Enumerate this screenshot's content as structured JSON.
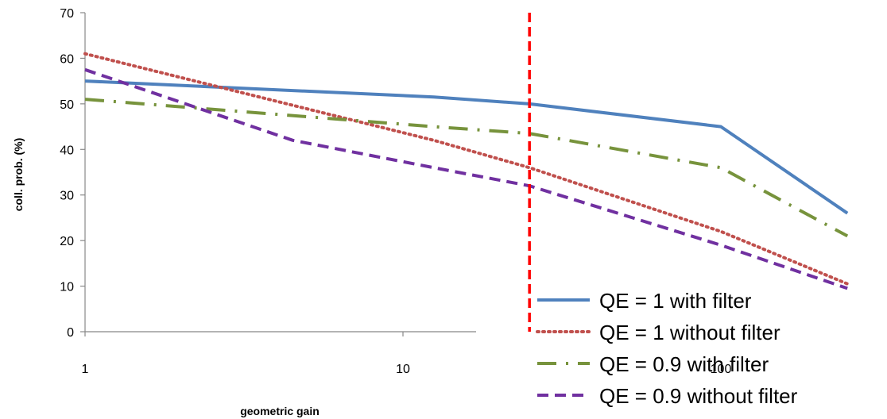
{
  "chart_data": {
    "type": "line",
    "title": "",
    "xlabel": "geometric gain",
    "ylabel": "coll. prob. (%)",
    "x_scale": "log",
    "xlim": [
      1,
      250
    ],
    "ylim": [
      0,
      70
    ],
    "x_ticks": [
      1,
      10,
      100
    ],
    "y_ticks": [
      0,
      10,
      20,
      30,
      40,
      50,
      60,
      70
    ],
    "grid": false,
    "legend_position": "bottom-right",
    "series": [
      {
        "name": "QE = 1 with filter",
        "color": "#4F81BD",
        "style": "solid",
        "x": [
          1,
          12.5,
          25,
          100,
          250
        ],
        "y": [
          55,
          51.5,
          50,
          45,
          26
        ]
      },
      {
        "name": "QE = 1 without filter",
        "color": "#C0504D",
        "style": "dotted",
        "x": [
          1,
          12.5,
          25,
          100,
          250
        ],
        "y": [
          61,
          42,
          36,
          22,
          10.5
        ]
      },
      {
        "name": "QE = 0.9 with filter",
        "color": "#77933C",
        "style": "dashdot",
        "x": [
          1,
          12.5,
          25,
          100,
          250
        ],
        "y": [
          51,
          45,
          43.5,
          36,
          21
        ]
      },
      {
        "name": "QE = 0.9 without filter",
        "color": "#7030A0",
        "style": "dashed",
        "x": [
          1,
          4.5,
          12.5,
          25,
          100,
          250
        ],
        "y": [
          57.5,
          42,
          36,
          32,
          19,
          9.5
        ]
      }
    ],
    "reference_line": {
      "x": 25,
      "color": "#FF0000",
      "style": "dashed"
    }
  }
}
